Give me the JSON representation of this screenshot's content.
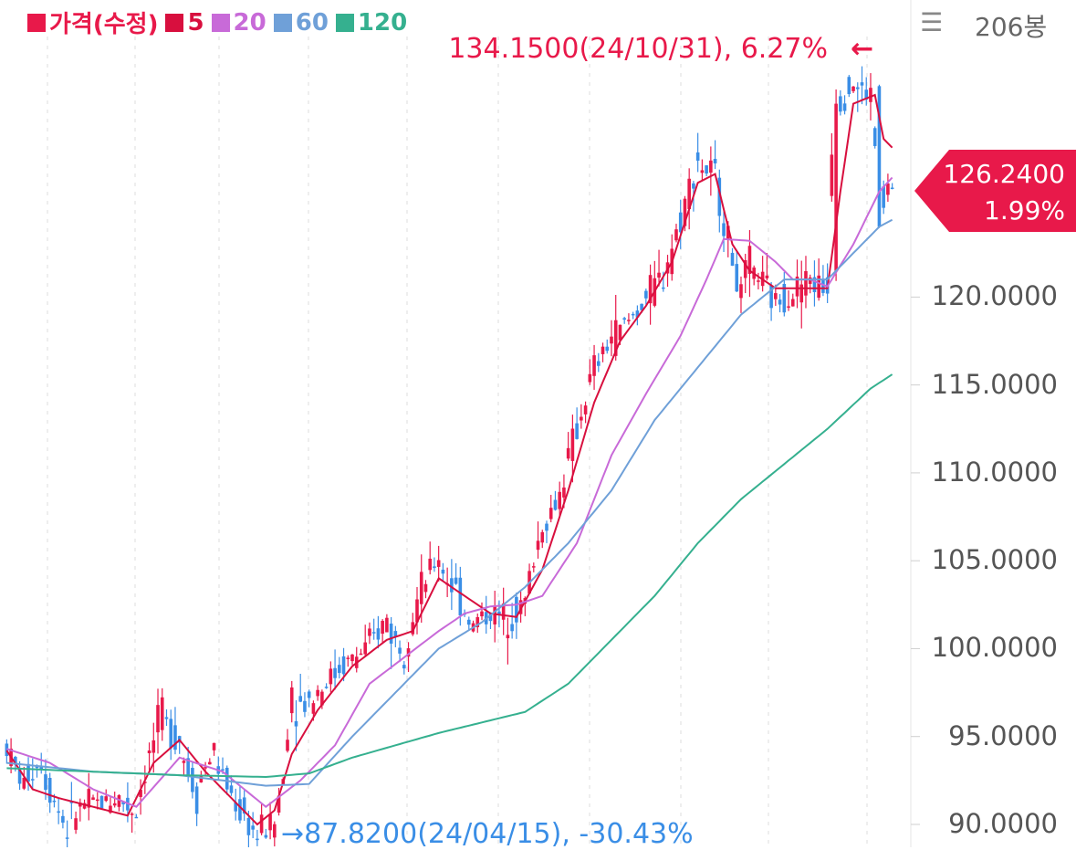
{
  "legend": [
    {
      "label": "가격(수정)",
      "color": "#e8194a"
    },
    {
      "label": "5",
      "color": "#d80f3e"
    },
    {
      "label": "20",
      "color": "#c86ad8"
    },
    {
      "label": "60",
      "color": "#6fa0d8"
    },
    {
      "label": "120",
      "color": "#35b08f"
    }
  ],
  "header": {
    "menu_icon": "hamburger-menu-icon",
    "menu_glyph": "☰",
    "bar_count": "206봉"
  },
  "annotations": {
    "high": "134.1500(24/10/31), 6.27%",
    "high_arrow": "←",
    "low": "→87.8200(24/04/15), -30.43%"
  },
  "current": {
    "price": "126.2400",
    "change": "1.99%",
    "color": "#e8194a"
  },
  "colors": {
    "up": "#e8194a",
    "down": "#3a8ee6"
  },
  "chart_data": {
    "type": "candlestick",
    "bar_count": 206,
    "yaxis_ticks": [
      "120.0000",
      "115.0000",
      "110.0000",
      "105.0000",
      "100.0000",
      "95.0000",
      "90.0000"
    ],
    "y_range": [
      88.7,
      136.9
    ],
    "high": {
      "value": 134.15,
      "date": "24/10/31",
      "change_pct": 6.27
    },
    "low": {
      "value": 87.82,
      "date": "24/04/15",
      "change_pct": -30.43
    },
    "last": {
      "value": 126.24,
      "change_pct": 1.99
    },
    "price_path": [
      [
        0,
        94.5
      ],
      [
        4,
        92.5
      ],
      [
        8,
        93.5
      ],
      [
        14,
        90
      ],
      [
        18,
        91
      ],
      [
        26,
        91.5
      ],
      [
        30,
        90.8
      ],
      [
        36,
        96
      ],
      [
        40,
        95
      ],
      [
        44,
        92
      ],
      [
        48,
        94
      ],
      [
        54,
        91
      ],
      [
        58,
        89.5
      ],
      [
        62,
        90
      ],
      [
        64,
        92
      ],
      [
        66,
        96.5
      ],
      [
        70,
        97
      ],
      [
        74,
        98
      ],
      [
        78,
        99
      ],
      [
        84,
        100
      ],
      [
        88,
        101.5
      ],
      [
        92,
        100
      ],
      [
        96,
        103
      ],
      [
        100,
        105
      ],
      [
        104,
        103.5
      ],
      [
        108,
        101.5
      ],
      [
        112,
        102
      ],
      [
        116,
        101.8
      ],
      [
        120,
        102.5
      ],
      [
        124,
        106.5
      ],
      [
        128,
        108.5
      ],
      [
        132,
        112
      ],
      [
        136,
        115.5
      ],
      [
        140,
        117.5
      ],
      [
        144,
        118.5
      ],
      [
        148,
        119.8
      ],
      [
        152,
        121
      ],
      [
        156,
        124
      ],
      [
        160,
        127.5
      ],
      [
        164,
        127
      ],
      [
        166,
        125
      ],
      [
        170,
        120.5
      ],
      [
        172,
        121.5
      ],
      [
        174,
        121.3
      ],
      [
        178,
        119.8
      ],
      [
        182,
        120.3
      ],
      [
        186,
        121
      ],
      [
        190,
        120.5
      ],
      [
        192,
        131
      ],
      [
        196,
        132
      ],
      [
        200,
        131.5
      ],
      [
        203,
        126
      ],
      [
        205,
        126.24
      ]
    ],
    "ma": [
      {
        "name": "5",
        "color": "#d80f3e",
        "path": [
          [
            0,
            94.2
          ],
          [
            6,
            92
          ],
          [
            12,
            91.5
          ],
          [
            20,
            91
          ],
          [
            28,
            90.5
          ],
          [
            34,
            93.5
          ],
          [
            40,
            94.8
          ],
          [
            46,
            93
          ],
          [
            52,
            91.5
          ],
          [
            58,
            90
          ],
          [
            62,
            90.8
          ],
          [
            66,
            94
          ],
          [
            72,
            96.5
          ],
          [
            80,
            99
          ],
          [
            88,
            100.5
          ],
          [
            94,
            101
          ],
          [
            100,
            104
          ],
          [
            106,
            103
          ],
          [
            112,
            102
          ],
          [
            118,
            101.8
          ],
          [
            124,
            104.5
          ],
          [
            130,
            109
          ],
          [
            136,
            114
          ],
          [
            142,
            117.5
          ],
          [
            148,
            119.5
          ],
          [
            154,
            122
          ],
          [
            160,
            126.5
          ],
          [
            164,
            127
          ],
          [
            168,
            123
          ],
          [
            172,
            121.5
          ],
          [
            178,
            120.5
          ],
          [
            186,
            120.5
          ],
          [
            190,
            120.5
          ],
          [
            193,
            126
          ],
          [
            196,
            131
          ],
          [
            201,
            131.5
          ],
          [
            203,
            129
          ],
          [
            205,
            128.5
          ]
        ]
      },
      {
        "name": "20",
        "color": "#c86ad8",
        "path": [
          [
            0,
            94.3
          ],
          [
            10,
            93.5
          ],
          [
            20,
            92
          ],
          [
            30,
            91
          ],
          [
            40,
            93.8
          ],
          [
            50,
            93
          ],
          [
            60,
            91
          ],
          [
            68,
            92.5
          ],
          [
            76,
            94.5
          ],
          [
            84,
            98
          ],
          [
            92,
            99.5
          ],
          [
            100,
            101
          ],
          [
            106,
            102
          ],
          [
            112,
            102.4
          ],
          [
            118,
            102.5
          ],
          [
            124,
            103
          ],
          [
            132,
            106
          ],
          [
            140,
            111
          ],
          [
            148,
            114.5
          ],
          [
            156,
            117.8
          ],
          [
            162,
            121
          ],
          [
            166,
            123.3
          ],
          [
            172,
            123.2
          ],
          [
            178,
            122
          ],
          [
            182,
            121
          ],
          [
            186,
            121
          ],
          [
            190,
            120.6
          ],
          [
            196,
            123
          ],
          [
            202,
            126
          ],
          [
            205,
            126.8
          ]
        ]
      },
      {
        "name": "60",
        "color": "#6fa0d8",
        "path": [
          [
            0,
            93.5
          ],
          [
            20,
            93
          ],
          [
            40,
            92.8
          ],
          [
            60,
            92.2
          ],
          [
            70,
            92.3
          ],
          [
            80,
            95
          ],
          [
            90,
            97.5
          ],
          [
            100,
            100
          ],
          [
            110,
            101.5
          ],
          [
            120,
            103.5
          ],
          [
            130,
            106
          ],
          [
            140,
            109
          ],
          [
            150,
            113
          ],
          [
            160,
            116
          ],
          [
            170,
            119
          ],
          [
            180,
            121
          ],
          [
            190,
            121
          ],
          [
            196,
            122.5
          ],
          [
            202,
            124
          ],
          [
            205,
            124.4
          ]
        ]
      },
      {
        "name": "120",
        "color": "#35b08f",
        "path": [
          [
            0,
            93.2
          ],
          [
            20,
            93
          ],
          [
            40,
            92.8
          ],
          [
            60,
            92.7
          ],
          [
            70,
            92.9
          ],
          [
            80,
            93.8
          ],
          [
            90,
            94.5
          ],
          [
            100,
            95.2
          ],
          [
            110,
            95.8
          ],
          [
            120,
            96.4
          ],
          [
            130,
            98
          ],
          [
            140,
            100.5
          ],
          [
            150,
            103
          ],
          [
            160,
            106
          ],
          [
            170,
            108.5
          ],
          [
            180,
            110.5
          ],
          [
            190,
            112.5
          ],
          [
            200,
            114.8
          ],
          [
            205,
            115.6
          ]
        ]
      }
    ]
  }
}
